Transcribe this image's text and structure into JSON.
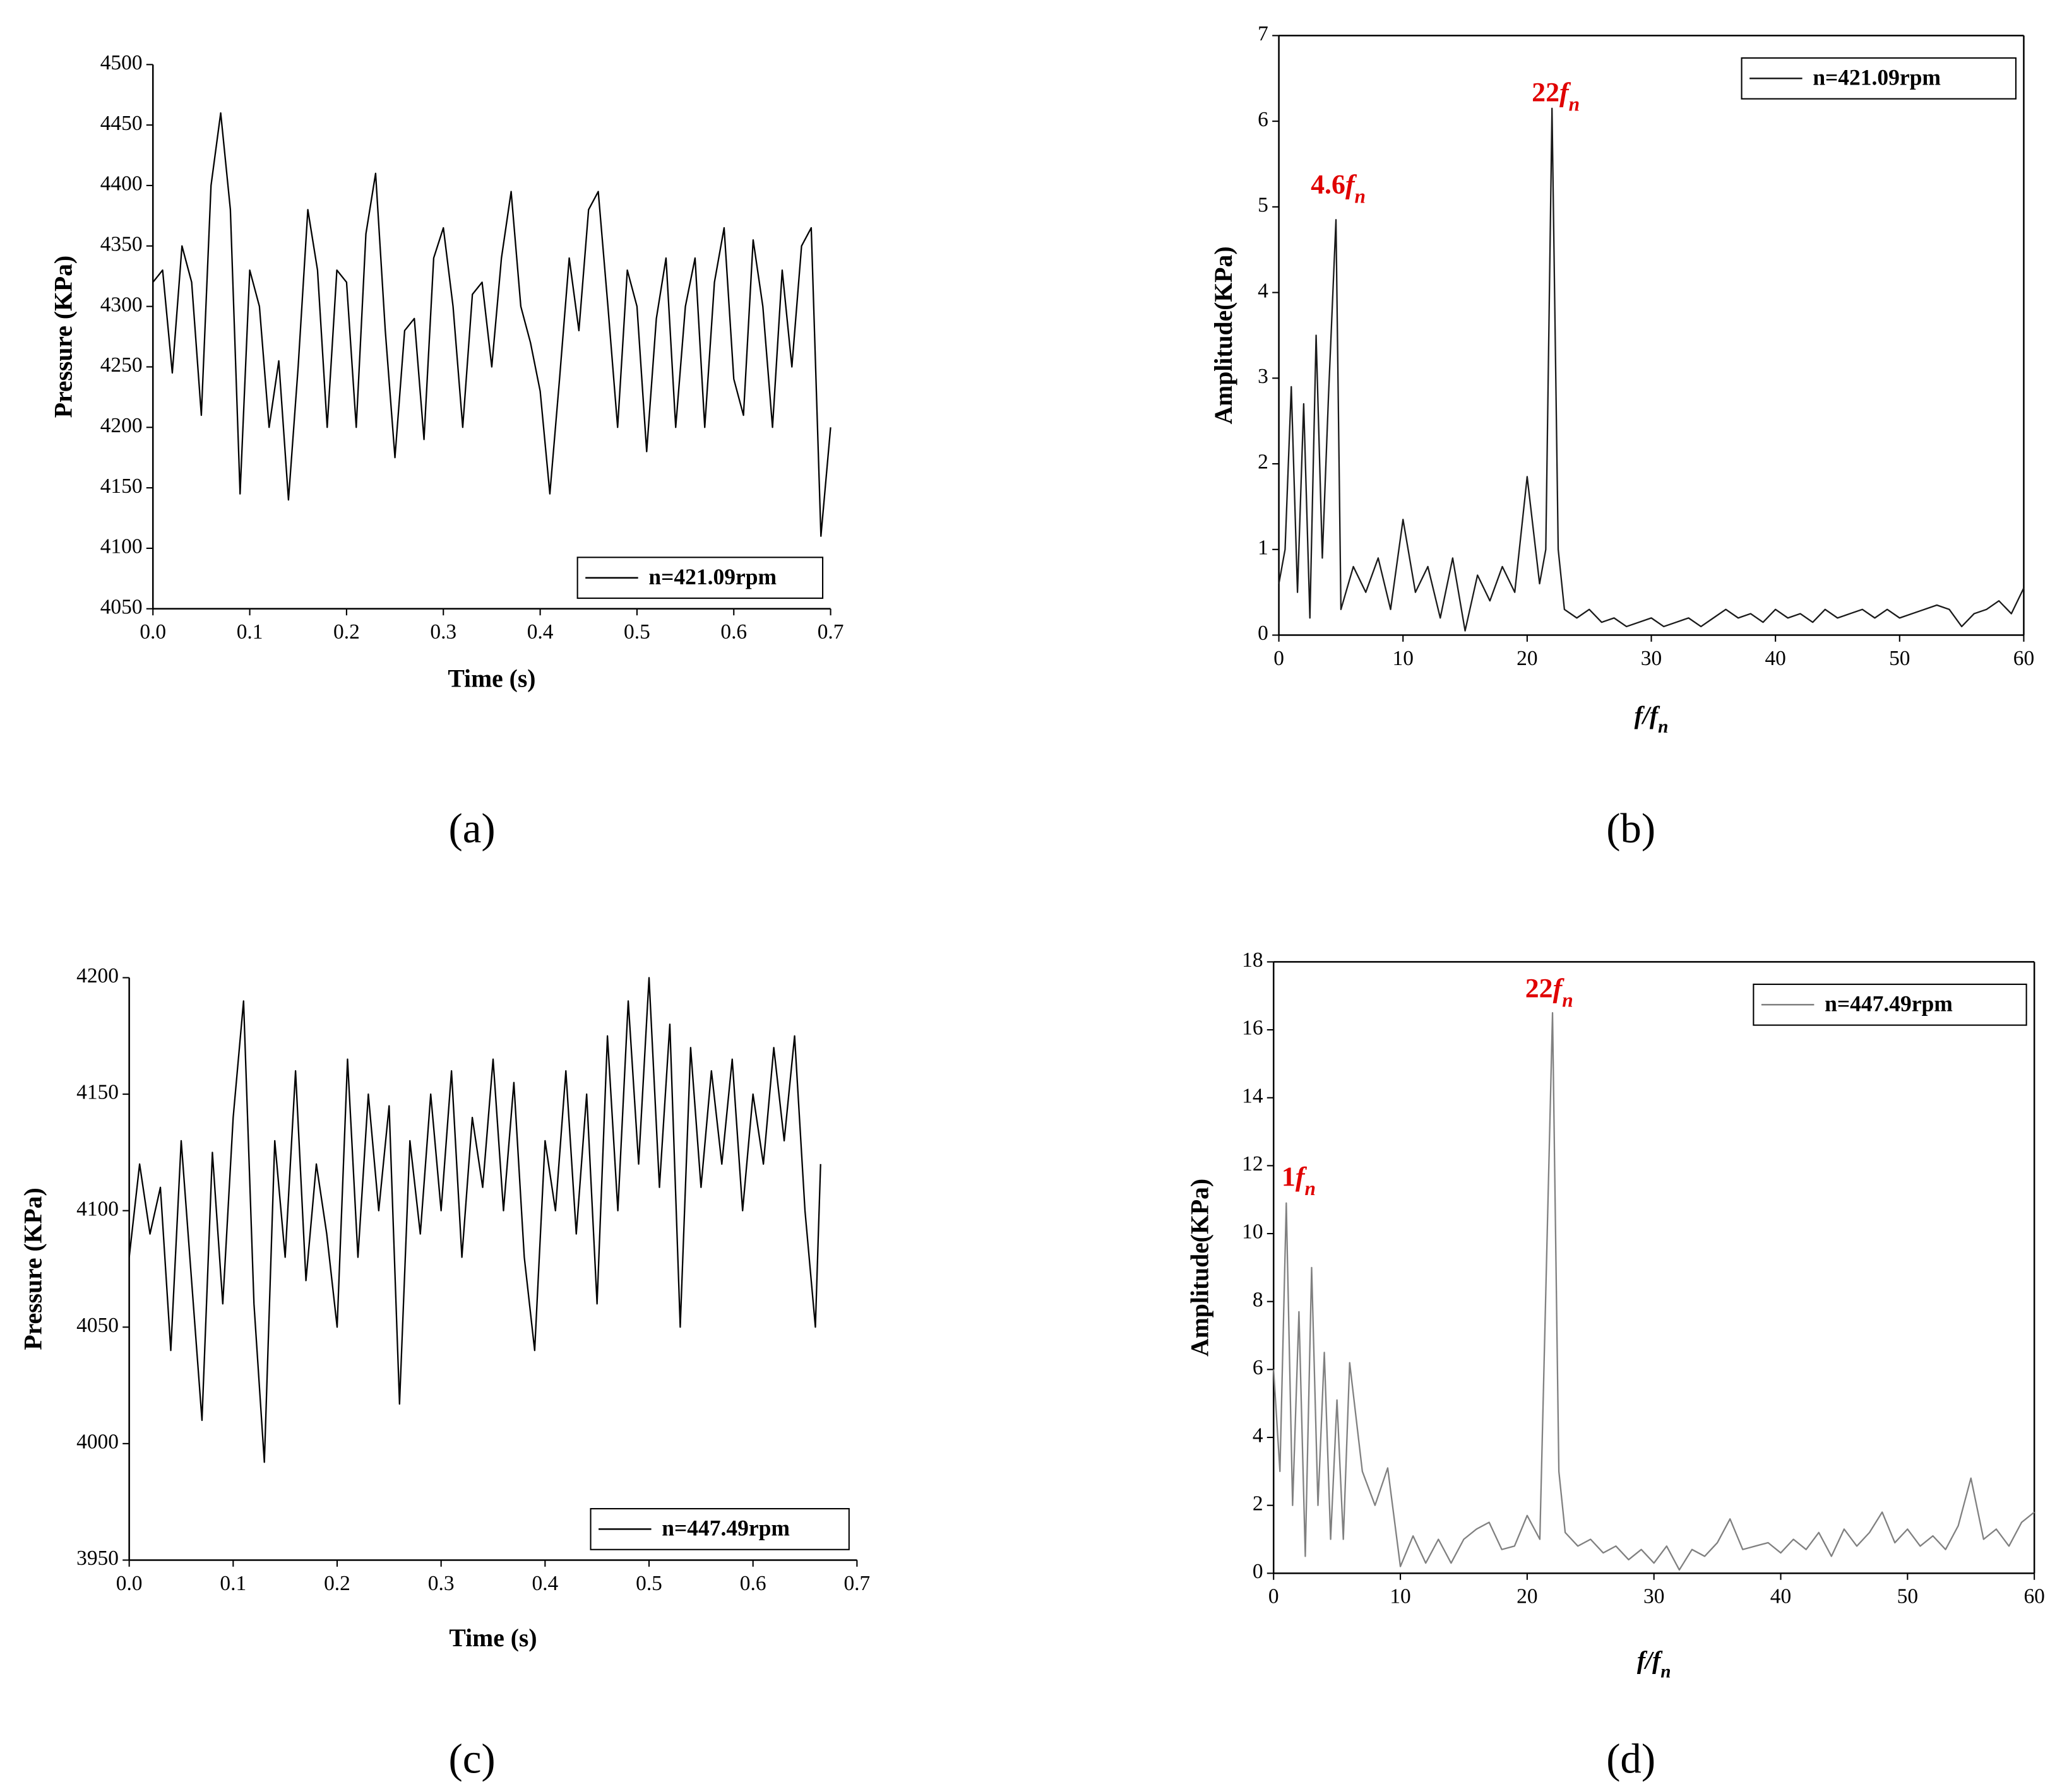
{
  "chart_data": [
    {
      "type": "line",
      "label": "(a)",
      "xlabel": "Time (s)",
      "ylabel": "Pressure (KPa)",
      "legend": "lower right",
      "frame": "open",
      "x": [
        0,
        0.01,
        0.02,
        0.03,
        0.04,
        0.05,
        0.06,
        0.07,
        0.08,
        0.09,
        0.1,
        0.11,
        0.12,
        0.13,
        0.14,
        0.15,
        0.16,
        0.17,
        0.18,
        0.19,
        0.2,
        0.21,
        0.22,
        0.23,
        0.24,
        0.25,
        0.26,
        0.27,
        0.28,
        0.29,
        0.3,
        0.31,
        0.32,
        0.33,
        0.34,
        0.35,
        0.36,
        0.37,
        0.38,
        0.39,
        0.4,
        0.41,
        0.42,
        0.43,
        0.44,
        0.45,
        0.46,
        0.47,
        0.48,
        0.49,
        0.5,
        0.51,
        0.52,
        0.53,
        0.54,
        0.55,
        0.56,
        0.57,
        0.58,
        0.59,
        0.6,
        0.61,
        0.62,
        0.63,
        0.64,
        0.65,
        0.66,
        0.67,
        0.68,
        0.69,
        0.7
      ],
      "series": [
        {
          "name": "n=421.09rpm",
          "color": "#000000",
          "values": [
            4320,
            4330,
            4245,
            4350,
            4320,
            4210,
            4400,
            4460,
            4380,
            4145,
            4330,
            4300,
            4200,
            4255,
            4140,
            4250,
            4380,
            4330,
            4200,
            4330,
            4320,
            4200,
            4360,
            4410,
            4280,
            4175,
            4280,
            4290,
            4190,
            4340,
            4365,
            4300,
            4200,
            4310,
            4320,
            4250,
            4340,
            4395,
            4300,
            4270,
            4230,
            4145,
            4240,
            4340,
            4280,
            4380,
            4395,
            4300,
            4200,
            4330,
            4300,
            4180,
            4290,
            4340,
            4200,
            4300,
            4340,
            4200,
            4320,
            4365,
            4240,
            4210,
            4355,
            4300,
            4200,
            4330,
            4250,
            4350,
            4365,
            4110,
            4200
          ]
        }
      ],
      "xlim": [
        0,
        0.7
      ],
      "xticks": [
        {
          "value": 0,
          "label": "0.0"
        },
        0.1,
        0.2,
        0.3,
        0.4,
        0.5,
        0.6,
        0.7
      ],
      "ylim": [
        4050,
        4500
      ],
      "yticks": [
        4050,
        4100,
        4150,
        4200,
        4250,
        4300,
        4350,
        4400,
        4450,
        4500
      ],
      "annotations": []
    },
    {
      "type": "line",
      "label": "(b)",
      "xlabel": "f/f",
      "xlabel_subscript": "n",
      "ylabel": "Amplitude(KPa)",
      "legend": "upper right",
      "frame": "box",
      "x": [
        0,
        0.5,
        1,
        1.5,
        2,
        2.5,
        3,
        3.5,
        4,
        4.6,
        5,
        6,
        7,
        8,
        9,
        10,
        11,
        12,
        13,
        14,
        15,
        16,
        17,
        18,
        19,
        20,
        21,
        21.5,
        22,
        22.5,
        23,
        24,
        25,
        26,
        27,
        28,
        29,
        30,
        31,
        32,
        33,
        34,
        35,
        36,
        37,
        38,
        39,
        40,
        41,
        42,
        43,
        44,
        45,
        46,
        47,
        48,
        49,
        50,
        51,
        52,
        53,
        54,
        55,
        56,
        57,
        58,
        59,
        60
      ],
      "series": [
        {
          "name": "n=421.09rpm",
          "color": "#1a1a1a",
          "values": [
            0.6,
            1.0,
            2.9,
            0.5,
            2.7,
            0.2,
            3.5,
            0.9,
            2.8,
            4.85,
            0.3,
            0.8,
            0.5,
            0.9,
            0.3,
            1.35,
            0.5,
            0.8,
            0.2,
            0.9,
            0.05,
            0.7,
            0.4,
            0.8,
            0.5,
            1.85,
            0.6,
            1.0,
            6.15,
            1.0,
            0.3,
            0.2,
            0.3,
            0.15,
            0.2,
            0.1,
            0.15,
            0.2,
            0.1,
            0.15,
            0.2,
            0.1,
            0.2,
            0.3,
            0.2,
            0.25,
            0.15,
            0.3,
            0.2,
            0.25,
            0.15,
            0.3,
            0.2,
            0.25,
            0.3,
            0.2,
            0.3,
            0.2,
            0.25,
            0.3,
            0.35,
            0.3,
            0.1,
            0.25,
            0.3,
            0.4,
            0.25,
            0.55
          ]
        }
      ],
      "xlim": [
        0,
        60
      ],
      "xticks": [
        0,
        10,
        20,
        30,
        40,
        50,
        60
      ],
      "ylim": [
        0,
        7
      ],
      "yticks": [
        0,
        1,
        2,
        3,
        4,
        5,
        6,
        7
      ],
      "annotations": [
        {
          "coef": "4.6",
          "symbol": "f",
          "sub": "n"
        },
        {
          "coef": "22",
          "symbol": "f",
          "sub": "n"
        }
      ]
    },
    {
      "type": "line",
      "label": "(c)",
      "xlabel": "Time (s)",
      "ylabel": "Pressure (KPa)",
      "legend": "lower right",
      "frame": "open",
      "x": [
        0,
        0.01,
        0.02,
        0.03,
        0.04,
        0.05,
        0.06,
        0.07,
        0.08,
        0.09,
        0.1,
        0.11,
        0.12,
        0.13,
        0.14,
        0.15,
        0.16,
        0.17,
        0.18,
        0.19,
        0.2,
        0.21,
        0.22,
        0.23,
        0.24,
        0.25,
        0.26,
        0.27,
        0.28,
        0.29,
        0.3,
        0.31,
        0.32,
        0.33,
        0.34,
        0.35,
        0.36,
        0.37,
        0.38,
        0.39,
        0.4,
        0.41,
        0.42,
        0.43,
        0.44,
        0.45,
        0.46,
        0.47,
        0.48,
        0.49,
        0.5,
        0.51,
        0.52,
        0.53,
        0.54,
        0.55,
        0.56,
        0.57,
        0.58,
        0.59,
        0.6,
        0.61,
        0.62,
        0.63,
        0.64,
        0.65,
        0.66,
        0.665
      ],
      "series": [
        {
          "name": "n=447.49rpm",
          "color": "#000000",
          "values": [
            4080,
            4120,
            4090,
            4110,
            4040,
            4130,
            4070,
            4010,
            4125,
            4060,
            4140,
            4190,
            4060,
            3992,
            4130,
            4080,
            4160,
            4070,
            4120,
            4090,
            4050,
            4165,
            4080,
            4150,
            4100,
            4145,
            4017,
            4130,
            4090,
            4150,
            4100,
            4160,
            4080,
            4140,
            4110,
            4165,
            4100,
            4155,
            4080,
            4040,
            4130,
            4100,
            4160,
            4090,
            4150,
            4060,
            4175,
            4100,
            4190,
            4120,
            4200,
            4110,
            4180,
            4050,
            4170,
            4110,
            4160,
            4120,
            4165,
            4100,
            4150,
            4120,
            4170,
            4130,
            4175,
            4100,
            4050,
            4120
          ]
        }
      ],
      "xlim": [
        0,
        0.7
      ],
      "xticks": [
        {
          "value": 0,
          "label": "0.0"
        },
        0.1,
        0.2,
        0.3,
        0.4,
        0.5,
        0.6,
        0.7
      ],
      "ylim": [
        3950,
        4200
      ],
      "yticks": [
        3950,
        4000,
        4050,
        4100,
        4150,
        4200
      ],
      "annotations": []
    },
    {
      "type": "line",
      "label": "(d)",
      "xlabel": "f/f",
      "xlabel_subscript": "n",
      "ylabel": "Amplitude(KPa)",
      "legend": "upper right",
      "frame": "box",
      "x": [
        0,
        0.5,
        1,
        1.5,
        2,
        2.5,
        3,
        3.5,
        4,
        4.5,
        5,
        5.5,
        6,
        7,
        8,
        9,
        10,
        11,
        12,
        13,
        14,
        15,
        16,
        17,
        18,
        19,
        20,
        21,
        22,
        22.5,
        23,
        24,
        25,
        26,
        27,
        28,
        29,
        30,
        31,
        32,
        33,
        34,
        35,
        36,
        37,
        38,
        39,
        40,
        41,
        42,
        43,
        44,
        45,
        46,
        47,
        48,
        49,
        50,
        51,
        52,
        53,
        54,
        55,
        56,
        57,
        58,
        59,
        60
      ],
      "series": [
        {
          "name": "n=447.49rpm",
          "color": "#808080",
          "values": [
            6,
            3,
            10.9,
            2,
            7.7,
            0.5,
            9,
            2,
            6.5,
            1,
            5.1,
            1,
            6.2,
            3,
            2,
            3.1,
            0.2,
            1.1,
            0.3,
            1,
            0.3,
            1,
            1.3,
            1.5,
            0.7,
            0.8,
            1.7,
            1,
            16.5,
            3,
            1.2,
            0.8,
            1,
            0.6,
            0.8,
            0.4,
            0.7,
            0.3,
            0.8,
            0.1,
            0.7,
            0.5,
            0.9,
            1.6,
            0.7,
            0.8,
            0.9,
            0.6,
            1,
            0.7,
            1.2,
            0.5,
            1.3,
            0.8,
            1.2,
            1.8,
            0.9,
            1.3,
            0.8,
            1.1,
            0.7,
            1.4,
            2.8,
            1,
            1.3,
            0.8,
            1.5,
            1.8
          ]
        }
      ],
      "xlim": [
        0,
        60
      ],
      "xticks": [
        0,
        10,
        20,
        30,
        40,
        50,
        60
      ],
      "ylim": [
        0,
        18
      ],
      "yticks": [
        0,
        2,
        4,
        6,
        8,
        10,
        12,
        14,
        16,
        18
      ],
      "annotations": [
        {
          "coef": "1",
          "symbol": "f",
          "sub": "n"
        },
        {
          "coef": "22",
          "symbol": "f",
          "sub": "n"
        }
      ]
    }
  ]
}
